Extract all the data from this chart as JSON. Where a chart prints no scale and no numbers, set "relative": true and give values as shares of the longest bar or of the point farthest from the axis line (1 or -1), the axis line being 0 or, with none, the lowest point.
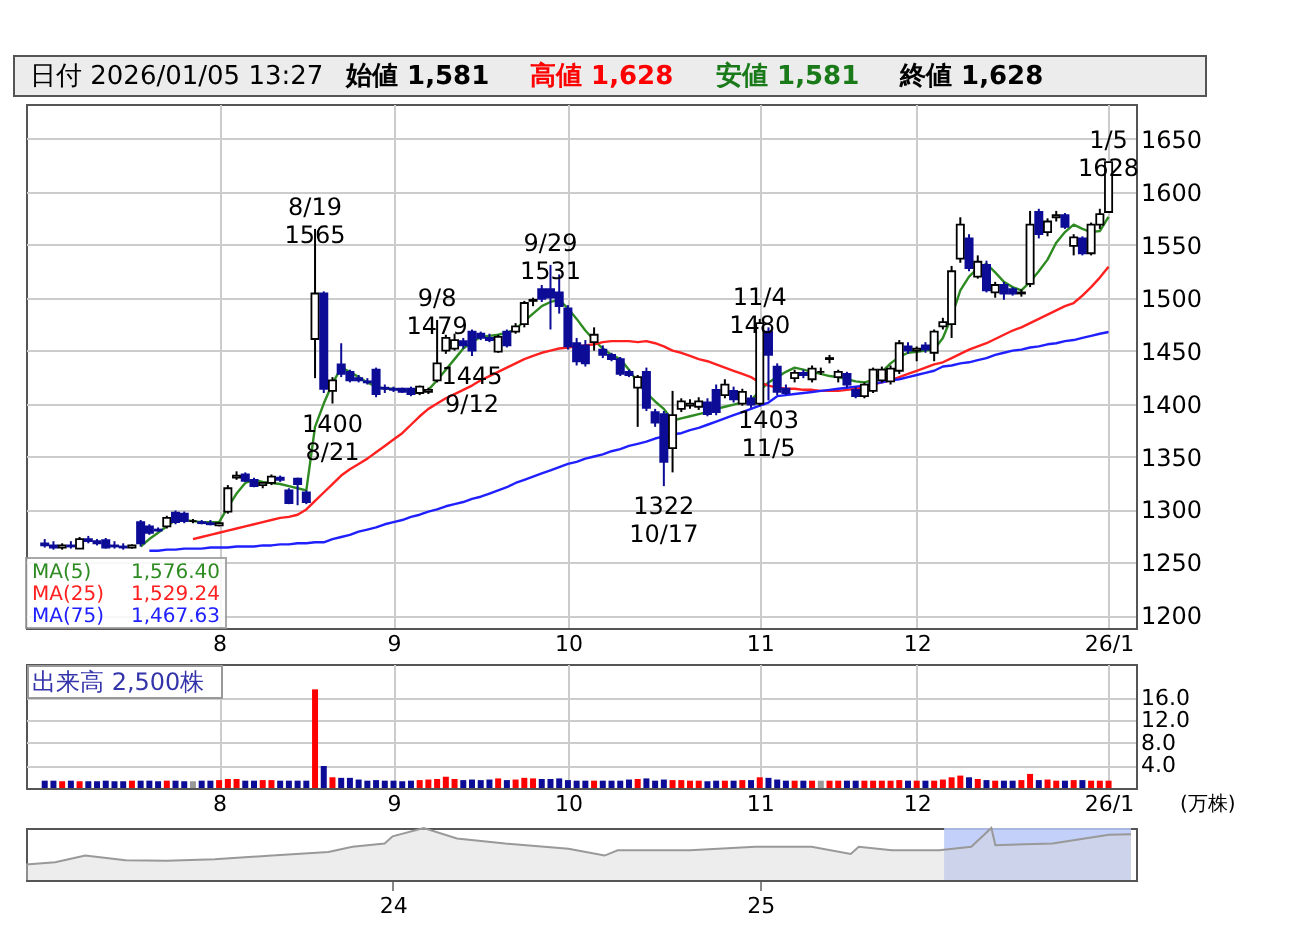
{
  "chart_data": [
    {
      "type": "candlestick",
      "categories": [
        null,
        null,
        null,
        null,
        null,
        null,
        null,
        null,
        null,
        null,
        null,
        null,
        null,
        null,
        null,
        null,
        null,
        null,
        null,
        null,
        "8",
        null,
        null,
        null,
        null,
        null,
        null,
        null,
        null,
        null,
        null,
        null,
        null,
        null,
        null,
        null,
        null,
        null,
        null,
        null,
        "9",
        null,
        null,
        null,
        null,
        null,
        null,
        null,
        null,
        null,
        null,
        null,
        null,
        null,
        null,
        null,
        null,
        null,
        null,
        null,
        "10",
        null,
        null,
        null,
        null,
        null,
        null,
        null,
        null,
        null,
        null,
        null,
        null,
        null,
        null,
        null,
        null,
        null,
        null,
        null,
        null,
        null,
        "11",
        null,
        null,
        null,
        null,
        null,
        null,
        null,
        null,
        null,
        null,
        null,
        null,
        null,
        null,
        null,
        null,
        null,
        "12",
        null,
        null,
        null,
        null,
        null,
        null,
        null,
        null,
        null,
        null,
        null,
        null,
        null,
        null,
        null,
        null,
        null,
        null,
        null,
        null,
        null,
        "26/1"
      ],
      "ohlc": [
        [
          1268,
          1272,
          1264,
          1266
        ],
        [
          1266,
          1270,
          1262,
          1264
        ],
        [
          1264,
          1268,
          1262,
          1266
        ],
        [
          1266,
          1270,
          1263,
          1265
        ],
        [
          1263,
          1274,
          1263,
          1272
        ],
        [
          1272,
          1275,
          1268,
          1270
        ],
        [
          1270,
          1272,
          1266,
          1268
        ],
        [
          1271,
          1273,
          1263,
          1264
        ],
        [
          1266,
          1270,
          1263,
          1265
        ],
        [
          1265,
          1268,
          1262,
          1264
        ],
        [
          1264,
          1267,
          1263,
          1266
        ],
        [
          1288,
          1290,
          1265,
          1268
        ],
        [
          1284,
          1286,
          1276,
          1278
        ],
        [
          1281,
          1283,
          1279,
          1280
        ],
        [
          1284,
          1294,
          1282,
          1292
        ],
        [
          1297,
          1299,
          1286,
          1288
        ],
        [
          1296,
          1298,
          1287,
          1289
        ],
        [
          1289,
          1291,
          1287,
          1289
        ],
        [
          1288,
          1290,
          1286,
          1287
        ],
        [
          1287,
          1290,
          1285,
          1286
        ],
        [
          1285,
          1288,
          1284,
          1287
        ],
        [
          1298,
          1323,
          1296,
          1320
        ],
        [
          1330,
          1336,
          1328,
          1332
        ],
        [
          1333,
          1335,
          1326,
          1327
        ],
        [
          1328,
          1330,
          1321,
          1322
        ],
        [
          1323,
          1326,
          1320,
          1325
        ],
        [
          1325,
          1333,
          1323,
          1331
        ],
        [
          1330,
          1332,
          1326,
          1328
        ],
        [
          1318,
          1320,
          1305,
          1306
        ],
        [
          1329,
          1330,
          1304,
          1324
        ],
        [
          1316,
          1318,
          1305,
          1307
        ],
        [
          1461,
          1565,
          1424,
          1504
        ],
        [
          1504,
          1506,
          1410,
          1414
        ],
        [
          1412,
          1425,
          1400,
          1422
        ],
        [
          1437,
          1457,
          1425,
          1428
        ],
        [
          1430,
          1432,
          1420,
          1422
        ],
        [
          1424,
          1427,
          1420,
          1422
        ],
        [
          1421,
          1424,
          1418,
          1420
        ],
        [
          1432,
          1434,
          1406,
          1409
        ],
        [
          1415,
          1418,
          1410,
          1414
        ],
        [
          1414,
          1416,
          1411,
          1413
        ],
        [
          1414,
          1415,
          1410,
          1411
        ],
        [
          1414,
          1416,
          1407,
          1409
        ],
        [
          1410,
          1417,
          1408,
          1416
        ],
        [
          1411,
          1415,
          1409,
          1413
        ],
        [
          1422,
          1479,
          1420,
          1438
        ],
        [
          1450,
          1465,
          1447,
          1462
        ],
        [
          1452,
          1466,
          1450,
          1460
        ],
        [
          1459,
          1462,
          1452,
          1455
        ],
        [
          1468,
          1470,
          1445,
          1450
        ],
        [
          1466,
          1468,
          1460,
          1462
        ],
        [
          1462,
          1466,
          1458,
          1460
        ],
        [
          1449,
          1465,
          1448,
          1463
        ],
        [
          1468,
          1470,
          1453,
          1455
        ],
        [
          1468,
          1476,
          1466,
          1473
        ],
        [
          1475,
          1497,
          1472,
          1495
        ],
        [
          1497,
          1500,
          1492,
          1498
        ],
        [
          1508,
          1512,
          1496,
          1499
        ],
        [
          1508,
          1531,
          1470,
          1500
        ],
        [
          1505,
          1522,
          1485,
          1492
        ],
        [
          1490,
          1493,
          1451,
          1454
        ],
        [
          1457,
          1462,
          1436,
          1440
        ],
        [
          1455,
          1460,
          1435,
          1438
        ],
        [
          1458,
          1472,
          1450,
          1465
        ],
        [
          1451,
          1455,
          1443,
          1446
        ],
        [
          1446,
          1448,
          1440,
          1442
        ],
        [
          1442,
          1444,
          1426,
          1428
        ],
        [
          1430,
          1432,
          1425,
          1427
        ],
        [
          1415,
          1427,
          1378,
          1425
        ],
        [
          1430,
          1434,
          1393,
          1396
        ],
        [
          1392,
          1395,
          1378,
          1382
        ],
        [
          1390,
          1393,
          1322,
          1345
        ],
        [
          1358,
          1412,
          1335,
          1389
        ],
        [
          1395,
          1405,
          1392,
          1402
        ],
        [
          1398,
          1404,
          1395,
          1400
        ],
        [
          1397,
          1406,
          1394,
          1402
        ],
        [
          1401,
          1405,
          1388,
          1390
        ],
        [
          1413,
          1418,
          1389,
          1392
        ],
        [
          1408,
          1423,
          1405,
          1418
        ],
        [
          1412,
          1416,
          1401,
          1404
        ],
        [
          1400,
          1414,
          1398,
          1411
        ],
        [
          1405,
          1408,
          1396,
          1399
        ],
        [
          1400,
          1480,
          1398,
          1476
        ],
        [
          1468,
          1472,
          1403,
          1446
        ],
        [
          1435,
          1438,
          1408,
          1411
        ],
        [
          1414,
          1418,
          1408,
          1410
        ],
        [
          1424,
          1432,
          1420,
          1429
        ],
        [
          1429,
          1432,
          1424,
          1427
        ],
        [
          1423,
          1436,
          1420,
          1433
        ],
        [
          1430,
          1434,
          1427,
          1430
        ],
        [
          1442,
          1446,
          1438,
          1443
        ],
        [
          1425,
          1432,
          1420,
          1430
        ],
        [
          1428,
          1430,
          1415,
          1418
        ],
        [
          1413,
          1416,
          1405,
          1407
        ],
        [
          1407,
          1420,
          1405,
          1418
        ],
        [
          1412,
          1434,
          1410,
          1432
        ],
        [
          1422,
          1435,
          1420,
          1432
        ],
        [
          1421,
          1436,
          1418,
          1433
        ],
        [
          1431,
          1460,
          1428,
          1457
        ],
        [
          1454,
          1458,
          1447,
          1450
        ],
        [
          1450,
          1454,
          1440,
          1452
        ],
        [
          1455,
          1458,
          1448,
          1451
        ],
        [
          1448,
          1470,
          1440,
          1468
        ],
        [
          1473,
          1481,
          1470,
          1477
        ],
        [
          1475,
          1530,
          1462,
          1525
        ],
        [
          1537,
          1576,
          1533,
          1569
        ],
        [
          1556,
          1560,
          1525,
          1528
        ],
        [
          1520,
          1540,
          1518,
          1534
        ],
        [
          1531,
          1535,
          1505,
          1507
        ],
        [
          1505,
          1515,
          1500,
          1512
        ],
        [
          1512,
          1515,
          1498,
          1504
        ],
        [
          1508,
          1510,
          1502,
          1504
        ],
        [
          1504,
          1508,
          1501,
          1505
        ],
        [
          1513,
          1582,
          1510,
          1569
        ],
        [
          1581,
          1584,
          1556,
          1560
        ],
        [
          1562,
          1575,
          1558,
          1572
        ],
        [
          1576,
          1582,
          1572,
          1578
        ],
        [
          1578,
          1580,
          1565,
          1567
        ],
        [
          1549,
          1560,
          1540,
          1557
        ],
        [
          1556,
          1558,
          1540,
          1542
        ],
        [
          1542,
          1571,
          1540,
          1569
        ],
        [
          1569,
          1584,
          1565,
          1579
        ],
        [
          1581,
          1628,
          1581,
          1628
        ]
      ],
      "series": [
        {
          "name": "MA(5)",
          "type": "line",
          "color": "#2e8b22",
          "values": [
            null,
            null,
            null,
            null,
            null,
            null,
            null,
            null,
            null,
            null,
            null,
            1265,
            1272,
            1278,
            1284,
            1290,
            1290,
            1289,
            1288,
            1288,
            1288,
            1302,
            1315,
            1325,
            1328,
            1326,
            1325,
            1324,
            1322,
            1320,
            1318,
            1378,
            1400,
            1419,
            1434,
            1430,
            1425,
            1420,
            1416,
            1414,
            1414,
            1413,
            1412,
            1412,
            1413,
            1422,
            1432,
            1442,
            1452,
            1458,
            1463,
            1464,
            1465,
            1467,
            1470,
            1478,
            1485,
            1492,
            1496,
            1498,
            1490,
            1480,
            1469,
            1460,
            1452,
            1446,
            1442,
            1432,
            1420,
            1410,
            1402,
            1395,
            1384,
            1386,
            1388,
            1390,
            1392,
            1395,
            1397,
            1399,
            1401,
            1403,
            1412,
            1420,
            1425,
            1430,
            1434,
            1432,
            1430,
            1428,
            1426,
            1425,
            1423,
            1421,
            1420,
            1422,
            1430,
            1438,
            1444,
            1448,
            1449,
            1450,
            1451,
            1462,
            1482,
            1507,
            1520,
            1528,
            1532,
            1524,
            1515,
            1510,
            1507,
            1515,
            1525,
            1536,
            1552,
            1562,
            1569,
            1565,
            1562,
            1563,
            1576.4
          ]
        },
        {
          "name": "MA(25)",
          "type": "line",
          "color": "#ff2020",
          "values": [
            null,
            null,
            null,
            null,
            null,
            null,
            null,
            null,
            null,
            null,
            null,
            null,
            null,
            null,
            null,
            null,
            null,
            1272,
            1274,
            1276,
            1278,
            1280,
            1282,
            1284,
            1286,
            1288,
            1290,
            1292,
            1293,
            1295,
            1300,
            1308,
            1316,
            1324,
            1332,
            1338,
            1343,
            1348,
            1354,
            1360,
            1366,
            1372,
            1380,
            1388,
            1395,
            1400,
            1405,
            1409,
            1413,
            1417,
            1422,
            1426,
            1430,
            1434,
            1438,
            1442,
            1445,
            1448,
            1450,
            1452,
            1453,
            1454,
            1455,
            1456,
            1458,
            1459,
            1459,
            1459,
            1458,
            1459,
            1457,
            1454,
            1450,
            1448,
            1445,
            1442,
            1440,
            1437,
            1434,
            1431,
            1428,
            1425,
            1420,
            1417,
            1415,
            1414,
            1414,
            1413,
            1413,
            1412,
            1412,
            1412,
            1413,
            1414,
            1416,
            1418,
            1420,
            1422,
            1425,
            1428,
            1431,
            1434,
            1437,
            1439,
            1443,
            1447,
            1451,
            1454,
            1457,
            1461,
            1465,
            1469,
            1472,
            1476,
            1480,
            1484,
            1488,
            1492,
            1495,
            1502,
            1510,
            1519,
            1529.24
          ]
        },
        {
          "name": "MA(75)",
          "type": "line",
          "color": "#2020ff",
          "values": [
            null,
            null,
            null,
            null,
            null,
            null,
            null,
            null,
            null,
            null,
            null,
            null,
            1261,
            1261,
            1262,
            1262,
            1263,
            1263,
            1263,
            1264,
            1264,
            1264,
            1265,
            1265,
            1265,
            1266,
            1266,
            1267,
            1267,
            1268,
            1268,
            1269,
            1269,
            1272,
            1274,
            1276,
            1279,
            1281,
            1283,
            1286,
            1288,
            1290,
            1293,
            1295,
            1298,
            1300,
            1303,
            1305,
            1307,
            1310,
            1312,
            1315,
            1318,
            1321,
            1325,
            1328,
            1331,
            1334,
            1337,
            1340,
            1343,
            1345,
            1348,
            1350,
            1352,
            1355,
            1357,
            1360,
            1362,
            1364,
            1367,
            1369,
            1371,
            1372,
            1375,
            1377,
            1380,
            1383,
            1386,
            1389,
            1392,
            1395,
            1398,
            1401,
            1407,
            1408,
            1409,
            1410,
            1411,
            1412,
            1413,
            1414,
            1415,
            1416,
            1417,
            1419,
            1420,
            1422,
            1423,
            1425,
            1427,
            1429,
            1431,
            1435,
            1436,
            1438,
            1439,
            1441,
            1443,
            1446,
            1448,
            1450,
            1451,
            1453,
            1454,
            1456,
            1457,
            1459,
            1460,
            1462,
            1464,
            1466,
            1467.63
          ]
        }
      ],
      "ylim": [
        1188,
        1683
      ],
      "yticks": [
        1200,
        1250,
        1300,
        1350,
        1400,
        1450,
        1500,
        1550,
        1600,
        1650
      ],
      "grid": true,
      "legend": "bottom left",
      "annotations": [
        "日付 2026/01/05 13:27",
        "始値 1,581",
        "高値 1,628",
        "安値 1,581",
        "終値 1,628",
        "1,576.40",
        "1,529.24",
        "1,467.63",
        {
          "text": "8/19\n1565",
          "y": 1565
        },
        {
          "text": "1400\n8/21",
          "y": 1400
        },
        {
          "text": "9/8\n1479",
          "y": 1479
        },
        {
          "text": "1445\n9/12",
          "y": 1445
        },
        {
          "text": "9/29\n1531",
          "y": 1531
        },
        {
          "text": "1322\n10/17",
          "y": 1322
        },
        {
          "text": "11/4\n1480",
          "y": 1480
        },
        {
          "text": "1403\n11/5",
          "y": 1403
        },
        {
          "text": "1/5\n1628",
          "y": 1628
        }
      ]
    },
    {
      "type": "bar",
      "categories": [
        null,
        null,
        null,
        null,
        null,
        null,
        null,
        null,
        null,
        null,
        null,
        null,
        null,
        null,
        null,
        null,
        null,
        null,
        null,
        null,
        "8",
        null,
        null,
        null,
        null,
        null,
        null,
        null,
        null,
        null,
        null,
        null,
        null,
        null,
        null,
        null,
        null,
        null,
        null,
        null,
        "9",
        null,
        null,
        null,
        null,
        null,
        null,
        null,
        null,
        null,
        null,
        null,
        null,
        null,
        null,
        null,
        null,
        null,
        null,
        null,
        "10",
        null,
        null,
        null,
        null,
        null,
        null,
        null,
        null,
        null,
        null,
        null,
        null,
        null,
        null,
        null,
        null,
        null,
        null,
        null,
        null,
        null,
        "11",
        null,
        null,
        null,
        null,
        null,
        null,
        null,
        null,
        null,
        null,
        null,
        null,
        null,
        null,
        null,
        null,
        null,
        "12",
        null,
        null,
        null,
        null,
        null,
        null,
        null,
        null,
        null,
        null,
        null,
        null,
        null,
        null,
        null,
        null,
        null,
        null,
        null,
        null,
        null,
        "26/1"
      ],
      "values": [
        1.3,
        1.3,
        1.2,
        1.3,
        1.2,
        1.2,
        1.2,
        1.3,
        1.2,
        1.2,
        1.3,
        1.3,
        1.3,
        1.2,
        1.3,
        1.3,
        1.2,
        1.2,
        1.3,
        1.3,
        1.4,
        1.6,
        1.6,
        1.3,
        1.3,
        1.4,
        1.4,
        1.3,
        1.3,
        1.3,
        1.3,
        17.5,
        3.9,
        1.9,
        1.8,
        1.8,
        1.5,
        1.3,
        1.4,
        1.3,
        1.3,
        1.2,
        1.3,
        1.4,
        1.5,
        1.6,
        2.0,
        1.6,
        1.4,
        1.5,
        1.4,
        1.5,
        1.7,
        1.4,
        1.5,
        1.8,
        1.7,
        1.6,
        1.6,
        1.7,
        1.4,
        1.3,
        1.3,
        1.3,
        1.3,
        1.3,
        1.3,
        1.5,
        1.6,
        1.7,
        1.3,
        1.5,
        1.4,
        1.4,
        1.3,
        1.3,
        1.2,
        1.3,
        1.3,
        1.3,
        1.4,
        1.4,
        1.9,
        1.8,
        1.5,
        1.3,
        1.3,
        1.3,
        1.3,
        1.3,
        1.3,
        1.3,
        1.3,
        1.3,
        1.3,
        1.3,
        1.3,
        1.3,
        1.4,
        1.3,
        1.3,
        1.3,
        1.3,
        1.5,
        1.9,
        2.2,
        1.9,
        1.6,
        1.4,
        1.3,
        1.3,
        1.3,
        1.4,
        2.5,
        1.4,
        1.5,
        1.3,
        1.3,
        1.4,
        1.4,
        1.3,
        1.3,
        1.3
      ],
      "colors": [
        "#0c0c96",
        "#0c0c96",
        "#ff0000",
        "#0c0c96",
        "#ff0000",
        "#0c0c96",
        "#0c0c96",
        "#0c0c96",
        "#0c0c96",
        "#0c0c96",
        "#ff0000",
        "#0c0c96",
        "#0c0c96",
        "#0c0c96",
        "#ff0000",
        "#0c0c96",
        "#0c0c96",
        "#999999",
        "#0c0c96",
        "#0c0c96",
        "#ff0000",
        "#ff0000",
        "#ff0000",
        "#0c0c96",
        "#0c0c96",
        "#ff0000",
        "#ff0000",
        "#0c0c96",
        "#0c0c96",
        "#0c0c96",
        "#0c0c96",
        "#ff0000",
        "#0c0c96",
        "#ff0000",
        "#0c0c96",
        "#0c0c96",
        "#0c0c96",
        "#0c0c96",
        "#0c0c96",
        "#0c0c96",
        "#0c0c96",
        "#0c0c96",
        "#0c0c96",
        "#ff0000",
        "#ff0000",
        "#ff0000",
        "#ff0000",
        "#ff0000",
        "#0c0c96",
        "#0c0c96",
        "#0c0c96",
        "#0c0c96",
        "#ff0000",
        "#0c0c96",
        "#ff0000",
        "#ff0000",
        "#ff0000",
        "#0c0c96",
        "#0c0c96",
        "#0c0c96",
        "#0c0c96",
        "#0c0c96",
        "#0c0c96",
        "#ff0000",
        "#0c0c96",
        "#0c0c96",
        "#0c0c96",
        "#0c0c96",
        "#ff0000",
        "#0c0c96",
        "#0c0c96",
        "#0c0c96",
        "#ff0000",
        "#ff0000",
        "#ff0000",
        "#ff0000",
        "#0c0c96",
        "#0c0c96",
        "#ff0000",
        "#0c0c96",
        "#ff0000",
        "#0c0c96",
        "#ff0000",
        "#0c0c96",
        "#0c0c96",
        "#0c0c96",
        "#ff0000",
        "#0c0c96",
        "#ff0000",
        "#999999",
        "#ff0000",
        "#ff0000",
        "#0c0c96",
        "#0c0c96",
        "#ff0000",
        "#ff0000",
        "#ff0000",
        "#ff0000",
        "#ff0000",
        "#0c0c96",
        "#ff0000",
        "#0c0c96",
        "#ff0000",
        "#ff0000",
        "#ff0000",
        "#ff0000",
        "#0c0c96",
        "#ff0000",
        "#0c0c96",
        "#ff0000",
        "#0c0c96",
        "#0c0c96",
        "#ff0000",
        "#ff0000",
        "#0c0c96",
        "#ff0000",
        "#ff0000",
        "#0c0c96",
        "#ff0000",
        "#0c0c96",
        "#ff0000",
        "#ff0000",
        "#ff0000"
      ],
      "ylim": [
        0,
        22
      ],
      "yticks": [
        {
          "value": 4,
          "label": "4.0"
        },
        {
          "value": 8,
          "label": "8.0"
        },
        {
          "value": 12,
          "label": "12.0"
        },
        {
          "value": 16,
          "label": "16.0"
        }
      ],
      "ylabel": "(万株)",
      "grid": true,
      "annotations": [
        "出来高 2,500株"
      ]
    },
    {
      "type": "area",
      "relative": true,
      "x": [
        "2023-01-01",
        "2023-01-30",
        "2023-03-01",
        "2023-04-10",
        "2023-05-21",
        "2023-07-08",
        "2023-09-03",
        "2023-10-29",
        "2023-11-22",
        "2023-12-24",
        "2024-01-01",
        "2024-02-01",
        "2024-03-05",
        "2024-04-22",
        "2024-06-24",
        "2024-07-30",
        "2024-08-12",
        "2024-10-23",
        "2024-12-27",
        "2025-02-21",
        "2025-04-01",
        "2025-04-09",
        "2025-05-12",
        "2025-06-28",
        "2025-07-30",
        "2025-08-19",
        "2025-08-23",
        "2025-10-19",
        "2025-12-14",
        "2026-01-05"
      ],
      "series": [
        {
          "color": "#999999",
          "values": [
            0.3,
            0.34,
            0.47,
            0.38,
            0.37,
            0.4,
            0.47,
            0.54,
            0.64,
            0.7,
            0.84,
            1.0,
            0.8,
            0.7,
            0.6,
            0.47,
            0.57,
            0.57,
            0.64,
            0.64,
            0.5,
            0.64,
            0.57,
            0.57,
            0.64,
            1.0,
            0.67,
            0.7,
            0.87,
            0.88
          ]
        }
      ],
      "xlim": [
        "2023-01-01",
        "2026-01-10"
      ],
      "xticks": [
        {
          "value": "2024-01-01",
          "label": "24"
        },
        {
          "value": "2025-01-01",
          "label": "25"
        }
      ],
      "bands": [
        {
          "axis": "x",
          "from": "2025-07-03",
          "to": "2026-01-05",
          "color": "#b8c8f8"
        }
      ],
      "tick_labels": "x"
    }
  ]
}
